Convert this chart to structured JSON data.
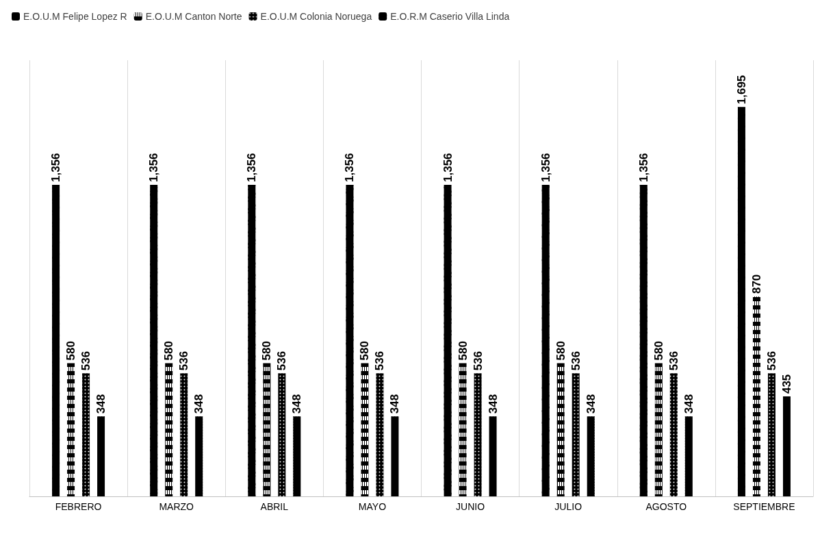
{
  "chart_data": {
    "type": "bar",
    "categories": [
      "FEBRERO",
      "MARZO",
      "ABRIL",
      "MAYO",
      "JUNIO",
      "JULIO",
      "AGOSTO",
      "SEPTIEMBRE"
    ],
    "series": [
      {
        "name": "E.O.U.M Felipe Lopez R",
        "color": "#000000",
        "values": [
          1356,
          1356,
          1356,
          1356,
          1356,
          1356,
          1356,
          1695
        ],
        "value_labels": [
          "1,356",
          "1,356",
          "1,356",
          "1,356",
          "1,356",
          "1,356",
          "1,356",
          "1,695"
        ]
      },
      {
        "name": "E.O.U.M Canton Norte",
        "color": "#000000",
        "values": [
          580,
          580,
          580,
          580,
          580,
          580,
          580,
          870
        ],
        "value_labels": [
          "580",
          "580",
          "580",
          "580",
          "580",
          "580",
          "580",
          "870"
        ]
      },
      {
        "name": "E.O.U.M Colonia Noruega",
        "color": "#000000",
        "values": [
          536,
          536,
          536,
          536,
          536,
          536,
          536,
          536
        ],
        "value_labels": [
          "536",
          "536",
          "536",
          "536",
          "536",
          "536",
          "536",
          "536"
        ]
      },
      {
        "name": "E.O.R.M Caserio Villa Linda",
        "color": "#000000",
        "values": [
          348,
          348,
          348,
          348,
          348,
          348,
          348,
          435
        ],
        "value_labels": [
          "348",
          "348",
          "348",
          "348",
          "348",
          "348",
          "348",
          "435"
        ]
      }
    ],
    "grid": "x",
    "legend": "top left"
  }
}
